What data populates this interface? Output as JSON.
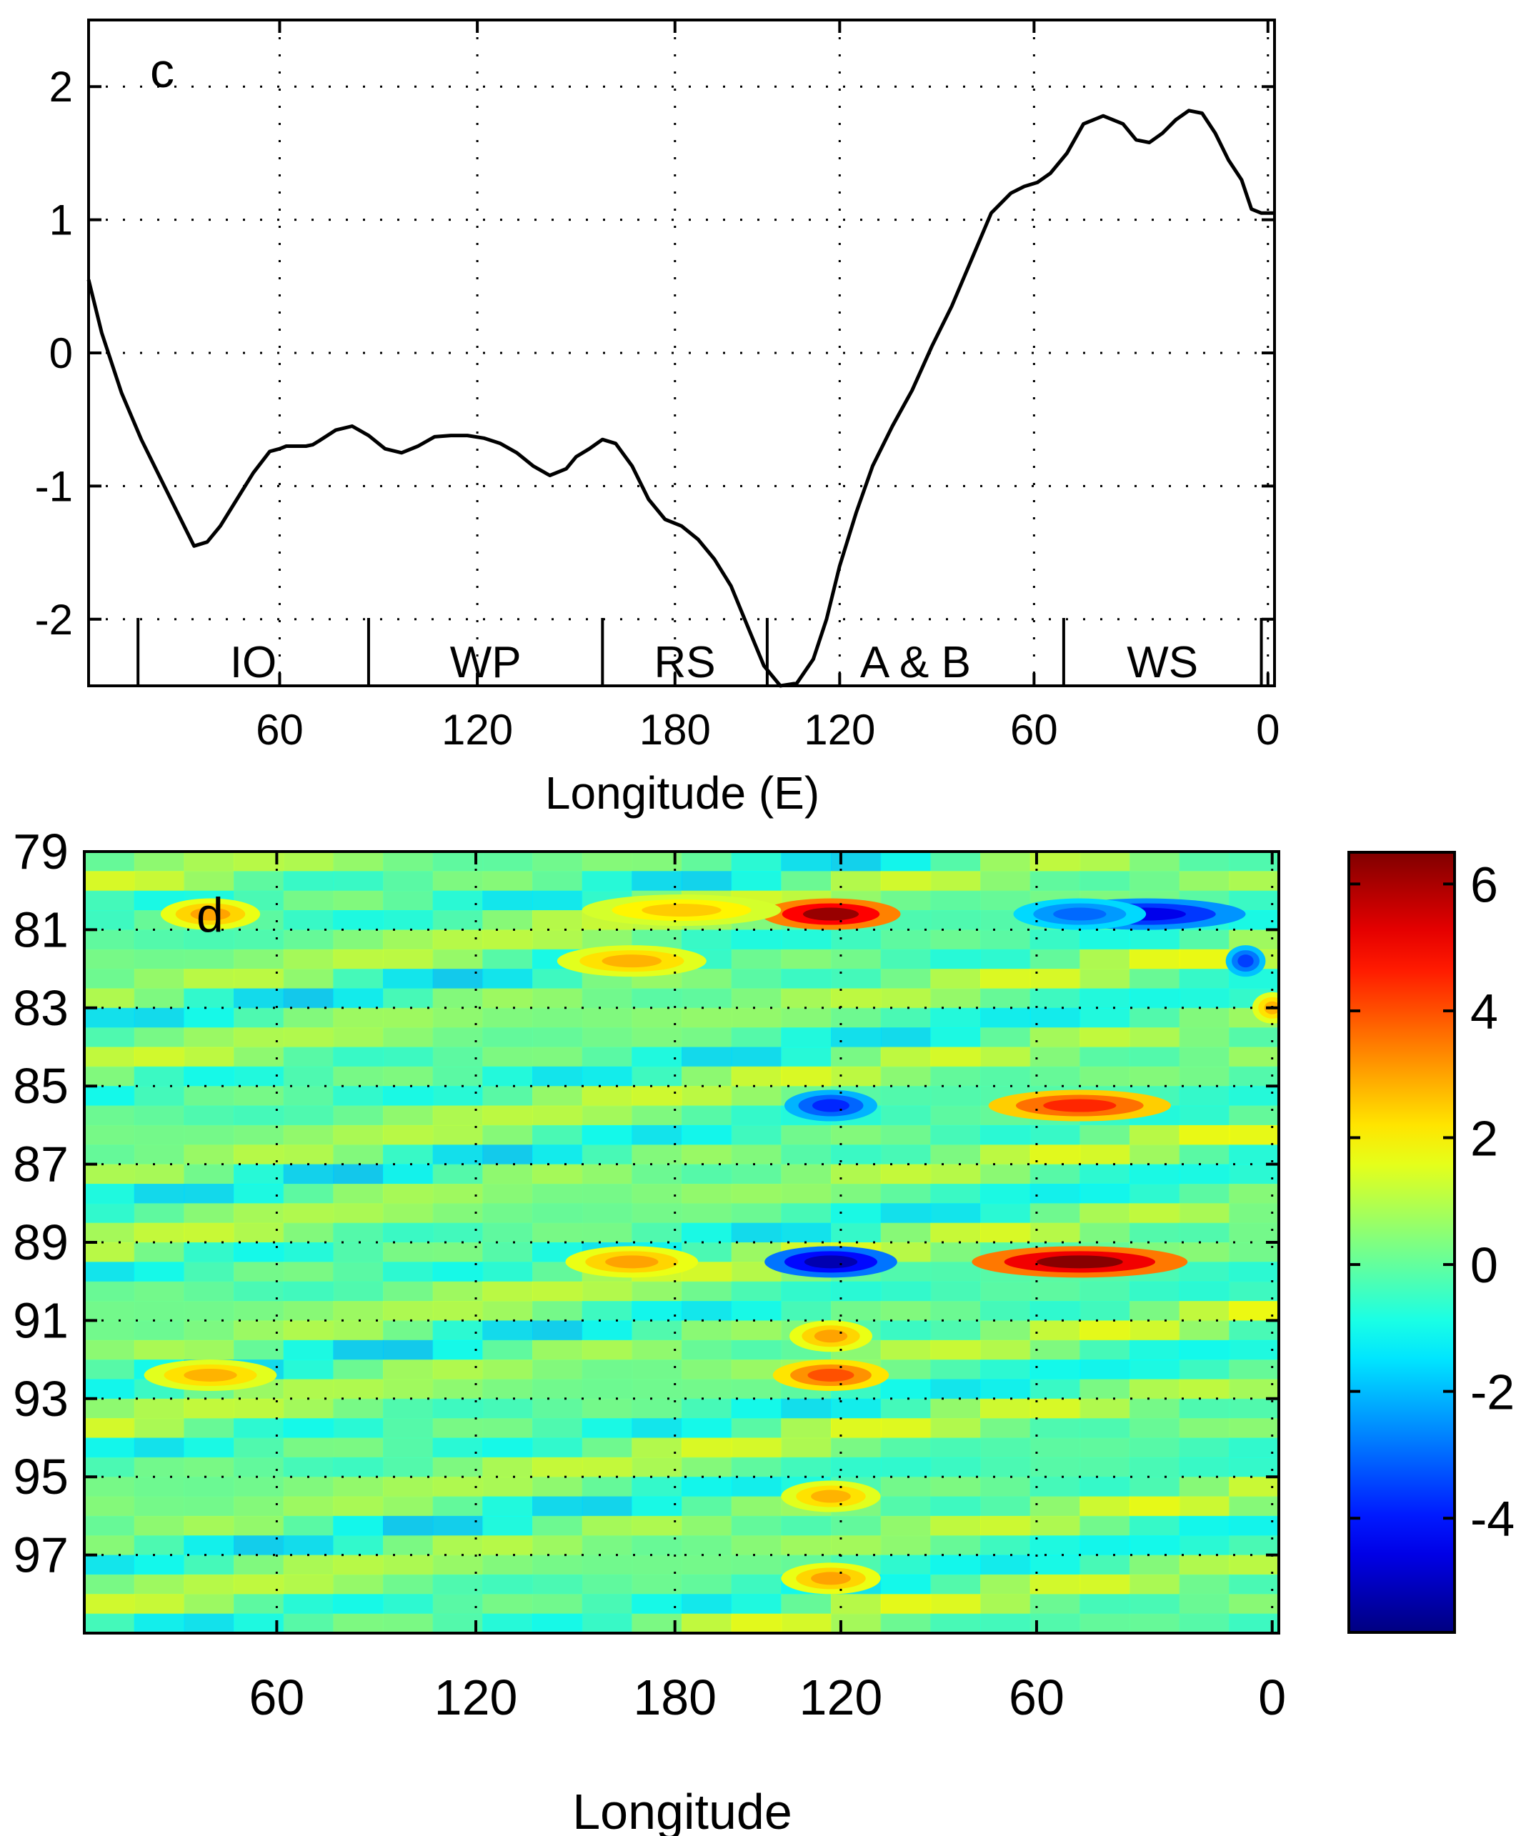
{
  "colors": {
    "line": "#000000",
    "background": "#ffffff",
    "colormap": "jet"
  },
  "chart_data": [
    {
      "type": "line",
      "panel_label": "c",
      "xlabel": "Longitude (E)",
      "ylabel": "",
      "grid": true,
      "xlim": [
        0,
        360
      ],
      "ylim": [
        -2.5,
        2.5
      ],
      "x_ticks": [
        {
          "pos": 58,
          "label": "60"
        },
        {
          "pos": 118,
          "label": "120"
        },
        {
          "pos": 178,
          "label": "180"
        },
        {
          "pos": 228,
          "label": "120"
        },
        {
          "pos": 287,
          "label": "60"
        },
        {
          "pos": 358,
          "label": "0"
        }
      ],
      "y_ticks": [
        {
          "value": 2,
          "label": "2"
        },
        {
          "value": 1,
          "label": "1"
        },
        {
          "value": 0,
          "label": "0"
        },
        {
          "value": -1,
          "label": "-1"
        },
        {
          "value": -2,
          "label": "-2"
        }
      ],
      "regions": [
        {
          "label": "IO",
          "from": 15,
          "to": 85
        },
        {
          "label": "WP",
          "from": 85,
          "to": 156
        },
        {
          "label": "RS",
          "from": 156,
          "to": 206
        },
        {
          "label": "A & B",
          "from": 206,
          "to": 296
        },
        {
          "label": "WS",
          "from": 296,
          "to": 356
        }
      ],
      "series": [
        {
          "x": [
            0,
            4,
            10,
            16,
            22,
            28,
            32,
            36,
            40,
            45,
            50,
            55,
            58,
            60,
            62,
            64,
            66,
            68,
            70,
            75,
            80,
            85,
            90,
            95,
            100,
            105,
            110,
            115,
            120,
            125,
            130,
            135,
            140,
            145,
            148,
            152,
            156,
            160,
            165,
            170,
            175,
            180,
            185,
            190,
            195,
            200,
            205,
            210,
            215,
            220,
            224,
            228,
            233,
            238,
            244,
            250,
            256,
            262,
            268,
            274,
            280,
            284,
            288,
            292,
            297,
            302,
            308,
            314,
            318,
            322,
            326,
            330,
            334,
            338,
            342,
            346,
            350,
            353,
            356,
            360
          ],
          "y": [
            0.55,
            0.15,
            -0.3,
            -0.65,
            -0.95,
            -1.25,
            -1.45,
            -1.42,
            -1.3,
            -1.1,
            -0.9,
            -0.74,
            -0.72,
            -0.7,
            -0.7,
            -0.7,
            -0.7,
            -0.69,
            -0.66,
            -0.58,
            -0.55,
            -0.62,
            -0.72,
            -0.75,
            -0.7,
            -0.63,
            -0.62,
            -0.62,
            -0.64,
            -0.68,
            -0.75,
            -0.85,
            -0.92,
            -0.87,
            -0.78,
            -0.72,
            -0.65,
            -0.68,
            -0.85,
            -1.1,
            -1.25,
            -1.3,
            -1.4,
            -1.55,
            -1.75,
            -2.05,
            -2.35,
            -2.5,
            -2.48,
            -2.3,
            -2.0,
            -1.6,
            -1.2,
            -0.85,
            -0.55,
            -0.28,
            0.05,
            0.35,
            0.7,
            1.05,
            1.2,
            1.25,
            1.28,
            1.35,
            1.5,
            1.72,
            1.78,
            1.72,
            1.6,
            1.58,
            1.65,
            1.75,
            1.82,
            1.8,
            1.65,
            1.45,
            1.3,
            1.08,
            1.05,
            1.05
          ]
        }
      ]
    },
    {
      "type": "heatmap",
      "panel_label": "d",
      "xlabel": "Longitude",
      "ylabel": "",
      "grid": true,
      "xlim": [
        0,
        360
      ],
      "x_ticks": [
        {
          "pos": 58,
          "label": "60"
        },
        {
          "pos": 118,
          "label": "120"
        },
        {
          "pos": 178,
          "label": "180"
        },
        {
          "pos": 228,
          "label": "120"
        },
        {
          "pos": 287,
          "label": "60"
        },
        {
          "pos": 358,
          "label": "0"
        }
      ],
      "y_ticks": [
        "79",
        "81",
        "83",
        "85",
        "87",
        "89",
        "91",
        "93",
        "95",
        "97"
      ],
      "y_range": [
        79,
        99
      ],
      "colorbar": {
        "colormap": "jet",
        "range": [
          -5.8,
          6.5
        ],
        "ticks": [
          "6",
          "4",
          "2",
          "0",
          "-2",
          "-4"
        ]
      },
      "features": [
        {
          "year": 80.6,
          "lon": 225,
          "value": 6.2,
          "width": 42
        },
        {
          "year": 80.6,
          "lon": 38,
          "value": 3.0,
          "width": 30
        },
        {
          "year": 80.5,
          "lon": 180,
          "value": 2.5,
          "width": 60
        },
        {
          "year": 80.6,
          "lon": 320,
          "value": -4.5,
          "width": 60
        },
        {
          "year": 80.6,
          "lon": 300,
          "value": -3.0,
          "width": 40
        },
        {
          "year": 81.8,
          "lon": 165,
          "value": 2.8,
          "width": 45
        },
        {
          "year": 81.8,
          "lon": 350,
          "value": -3.5,
          "width": 12
        },
        {
          "year": 83.0,
          "lon": 358,
          "value": 2.8,
          "width": 12
        },
        {
          "year": 85.5,
          "lon": 300,
          "value": 4.5,
          "width": 55
        },
        {
          "year": 85.5,
          "lon": 225,
          "value": -3.8,
          "width": 28
        },
        {
          "year": 89.5,
          "lon": 300,
          "value": 6.4,
          "width": 65
        },
        {
          "year": 89.5,
          "lon": 225,
          "value": -5.2,
          "width": 40
        },
        {
          "year": 89.5,
          "lon": 165,
          "value": 3.0,
          "width": 40
        },
        {
          "year": 92.4,
          "lon": 225,
          "value": 4.0,
          "width": 35
        },
        {
          "year": 92.4,
          "lon": 38,
          "value": 2.8,
          "width": 40
        },
        {
          "year": 91.4,
          "lon": 225,
          "value": 3.0,
          "width": 25
        },
        {
          "year": 95.5,
          "lon": 225,
          "value": 2.8,
          "width": 30
        },
        {
          "year": 97.6,
          "lon": 225,
          "value": 3.0,
          "width": 30
        }
      ]
    }
  ]
}
